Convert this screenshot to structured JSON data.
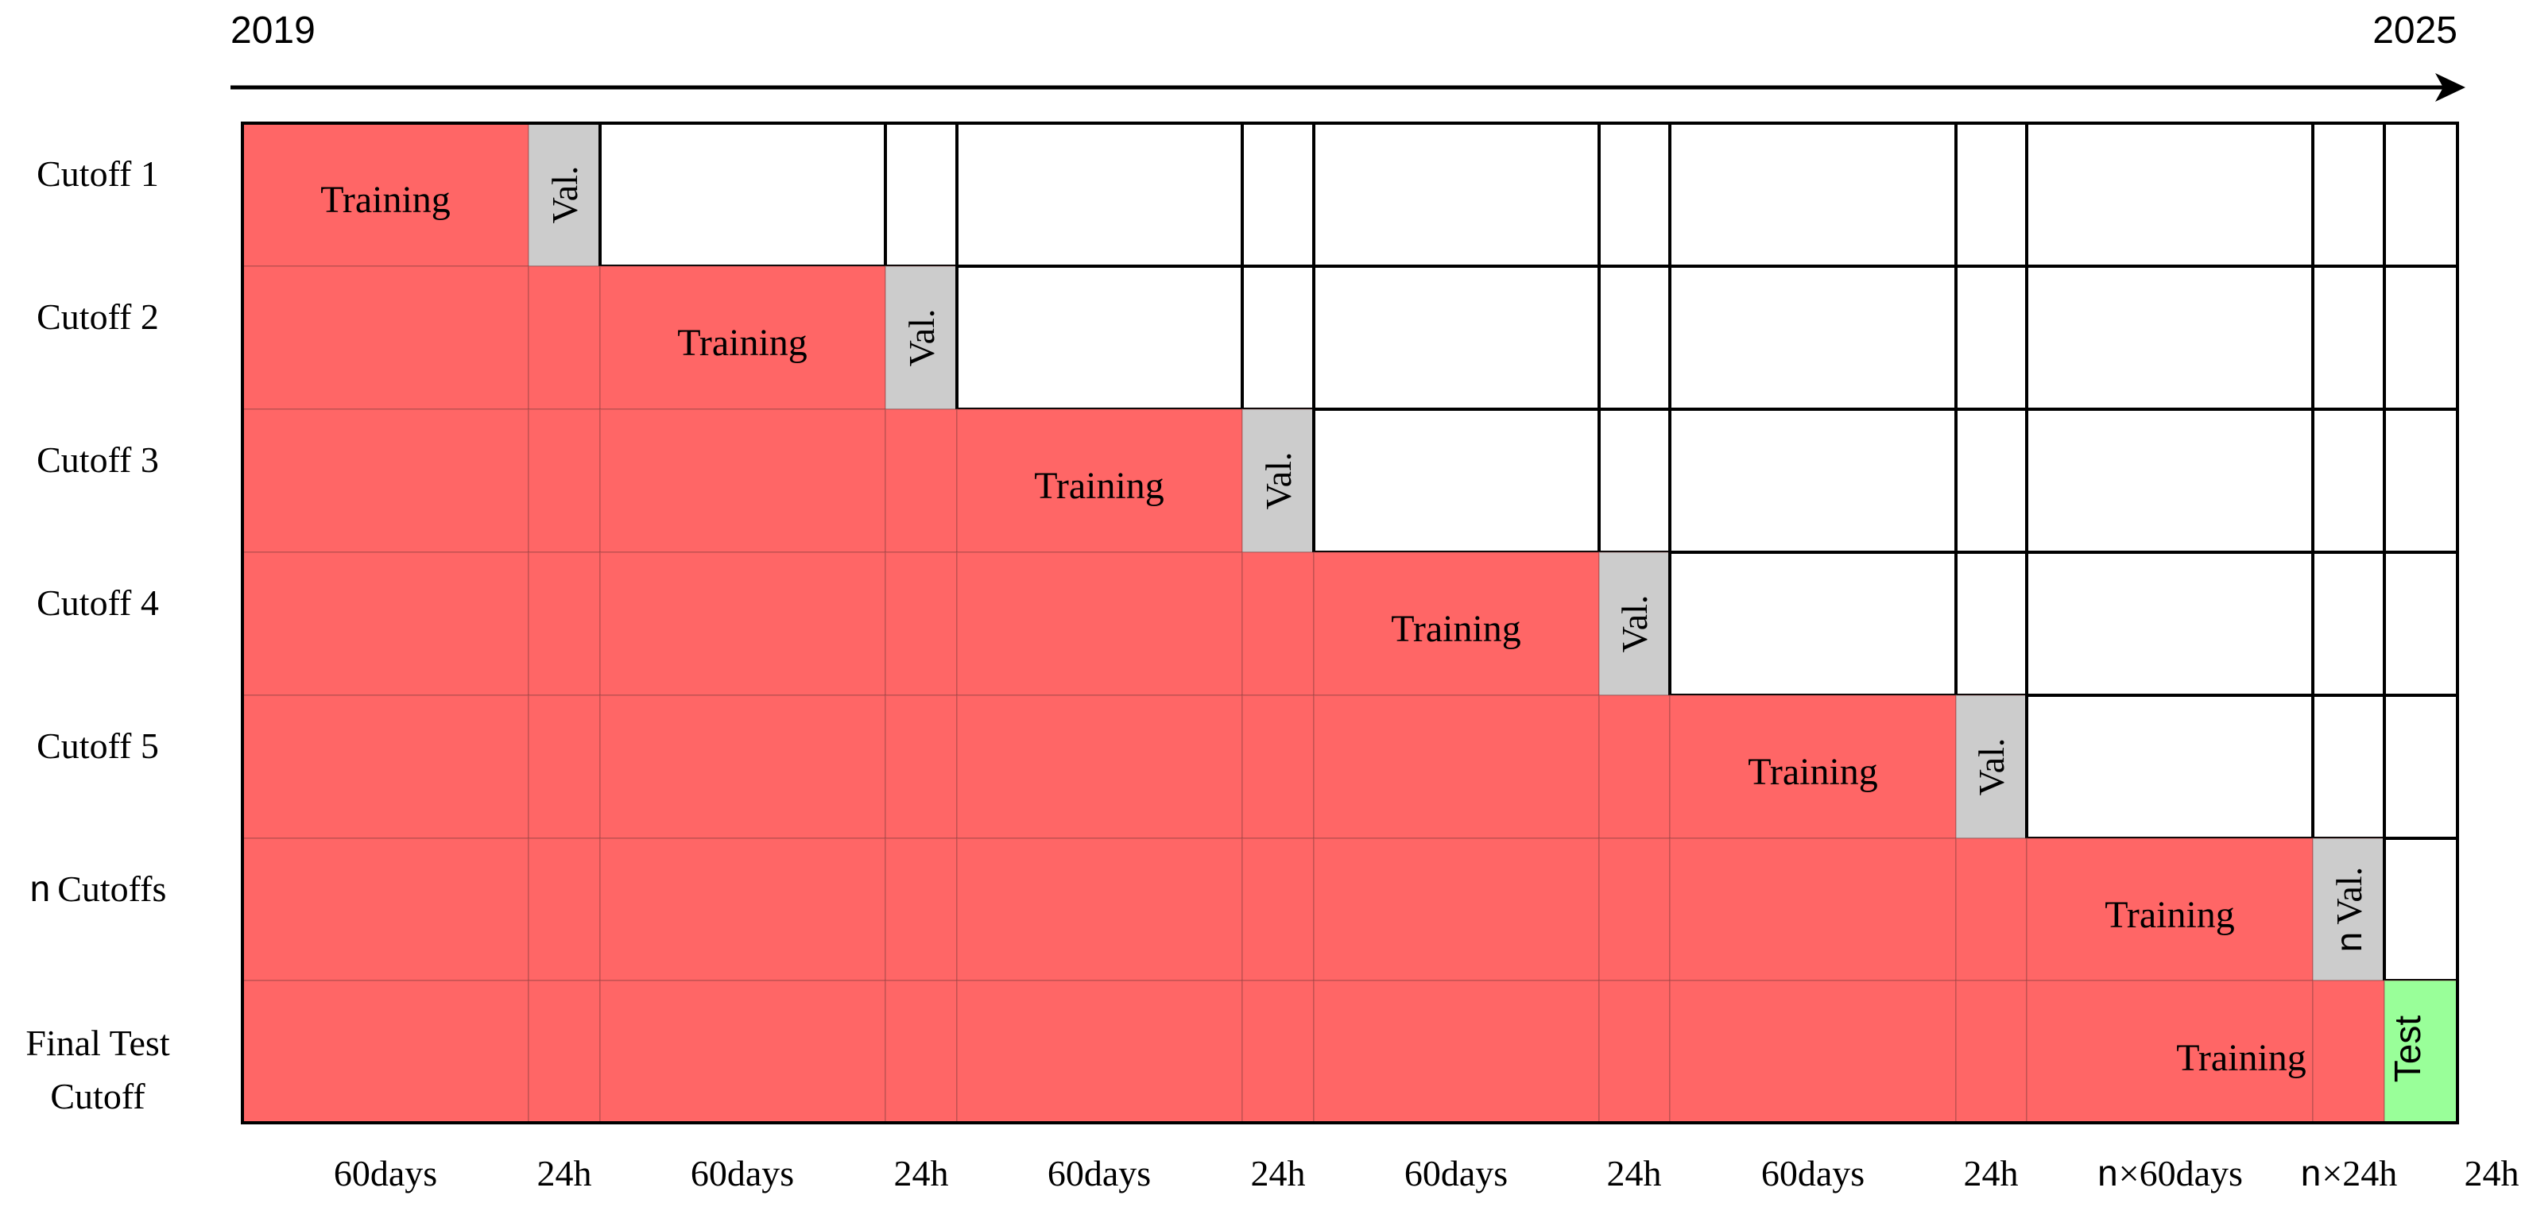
{
  "timeline": {
    "start_label": "2019",
    "end_label": "2025"
  },
  "rows": [
    {
      "label": "Cutoff 1"
    },
    {
      "label": "Cutoff 2"
    },
    {
      "label": "Cutoff 3"
    },
    {
      "label": "Cutoff 4"
    },
    {
      "label": "Cutoff 5"
    },
    {
      "label_prefix": "n",
      "label": "Cutoffs"
    },
    {
      "label_line1": "Final Test",
      "label_line2": "Cutoff"
    }
  ],
  "column_labels": [
    {
      "text": "60days"
    },
    {
      "text": "24h"
    },
    {
      "text": "60days"
    },
    {
      "text": "24h"
    },
    {
      "text": "60days"
    },
    {
      "text": "24h"
    },
    {
      "text": "60days"
    },
    {
      "text": "24h"
    },
    {
      "text": "60days"
    },
    {
      "text": "24h"
    },
    {
      "prefix": "n",
      "text": "×60days"
    },
    {
      "prefix": "n",
      "text": "×24h"
    },
    {
      "text": "24h"
    }
  ],
  "blocks": {
    "training_label": "Training",
    "validation_label": "Val.",
    "n_validation_prefix": "n",
    "test_label": "Test"
  },
  "colors": {
    "training": "#ff6666",
    "validation": "#cccccc",
    "test": "#99ff99",
    "grid": "#000000",
    "empty": "#ffffff"
  }
}
